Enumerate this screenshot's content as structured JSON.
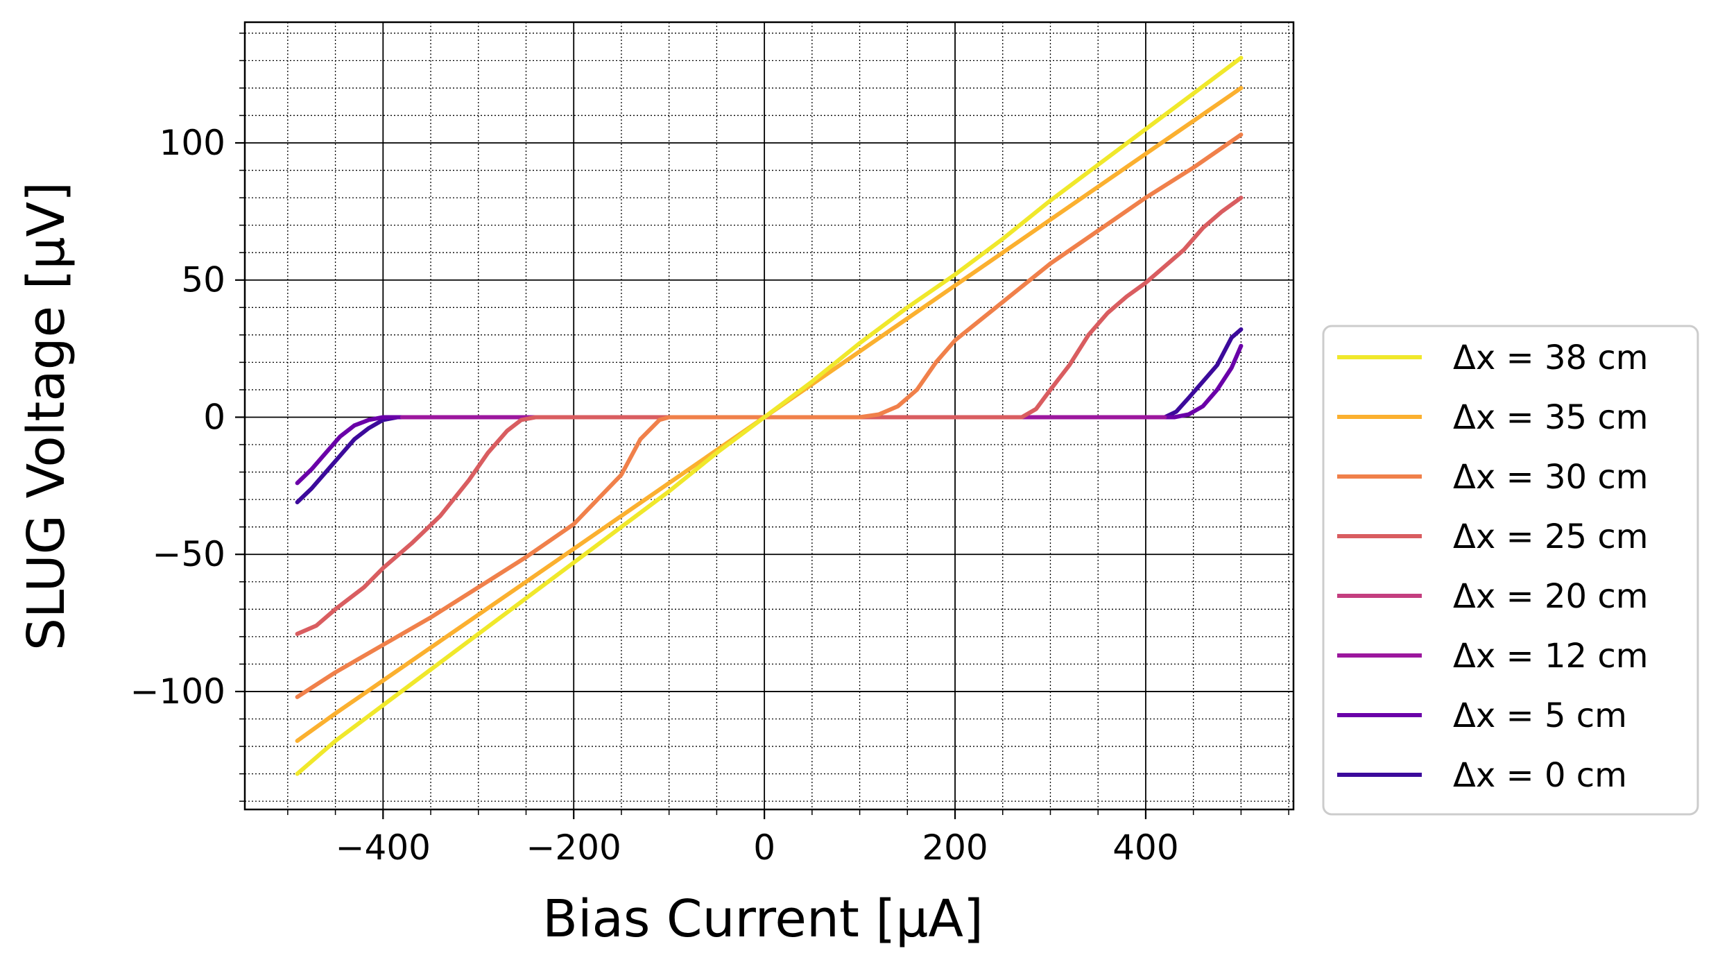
{
  "chart_data": {
    "type": "line",
    "xlabel": "Bias Current [μA]",
    "ylabel": "SLUG Voltage [μV]",
    "xlim": [
      -545,
      555
    ],
    "ylim": [
      -143,
      144
    ],
    "xticks": [
      -400,
      -200,
      0,
      200,
      400
    ],
    "yticks": [
      -100,
      -50,
      0,
      50,
      100
    ],
    "xtick_labels": [
      "−400",
      "−200",
      "0",
      "200",
      "400"
    ],
    "ytick_labels": [
      "−100",
      "−50",
      "0",
      "50",
      "100"
    ],
    "grid": "major solid, minor dotted",
    "legend_position": "outside right, lower",
    "series": [
      {
        "name": "Δx = 38 cm",
        "color": "#f0e82b",
        "points": [
          [
            -490,
            -130
          ],
          [
            -450,
            -118
          ],
          [
            -400,
            -105
          ],
          [
            -350,
            -92
          ],
          [
            -300,
            -79
          ],
          [
            -250,
            -66
          ],
          [
            -200,
            -53
          ],
          [
            -150,
            -40
          ],
          [
            -100,
            -27
          ],
          [
            -50,
            -13
          ],
          [
            0,
            0
          ],
          [
            50,
            13
          ],
          [
            100,
            27
          ],
          [
            150,
            40
          ],
          [
            200,
            52
          ],
          [
            250,
            65
          ],
          [
            300,
            79
          ],
          [
            350,
            92
          ],
          [
            400,
            105
          ],
          [
            450,
            118
          ],
          [
            500,
            131
          ]
        ]
      },
      {
        "name": "Δx = 35 cm",
        "color": "#fbb02f",
        "points": [
          [
            -490,
            -118
          ],
          [
            -450,
            -108
          ],
          [
            -400,
            -96
          ],
          [
            -350,
            -84
          ],
          [
            -300,
            -72
          ],
          [
            -250,
            -60
          ],
          [
            -200,
            -48
          ],
          [
            -150,
            -36
          ],
          [
            -100,
            -24
          ],
          [
            -50,
            -12
          ],
          [
            0,
            0
          ],
          [
            50,
            12
          ],
          [
            100,
            24
          ],
          [
            150,
            36
          ],
          [
            200,
            48
          ],
          [
            250,
            60
          ],
          [
            300,
            72
          ],
          [
            350,
            84
          ],
          [
            400,
            96
          ],
          [
            450,
            108
          ],
          [
            500,
            120
          ]
        ]
      },
      {
        "name": "Δx = 30 cm",
        "color": "#f0804a",
        "points": [
          [
            -490,
            -102
          ],
          [
            -450,
            -93
          ],
          [
            -400,
            -83
          ],
          [
            -350,
            -73
          ],
          [
            -300,
            -62
          ],
          [
            -250,
            -51
          ],
          [
            -200,
            -39
          ],
          [
            -150,
            -21
          ],
          [
            -130,
            -8
          ],
          [
            -110,
            -1
          ],
          [
            -100,
            0
          ],
          [
            100,
            0
          ],
          [
            120,
            1
          ],
          [
            140,
            4
          ],
          [
            160,
            10
          ],
          [
            180,
            20
          ],
          [
            200,
            28
          ],
          [
            250,
            42
          ],
          [
            300,
            56
          ],
          [
            350,
            68
          ],
          [
            400,
            80
          ],
          [
            450,
            91
          ],
          [
            500,
            103
          ]
        ]
      },
      {
        "name": "Δx = 25 cm",
        "color": "#d95d60",
        "points": [
          [
            -490,
            -79
          ],
          [
            -470,
            -76
          ],
          [
            -450,
            -70
          ],
          [
            -420,
            -62
          ],
          [
            -400,
            -55
          ],
          [
            -370,
            -46
          ],
          [
            -340,
            -36
          ],
          [
            -310,
            -23
          ],
          [
            -290,
            -13
          ],
          [
            -270,
            -5
          ],
          [
            -255,
            -1
          ],
          [
            -240,
            0
          ],
          [
            270,
            0
          ],
          [
            285,
            3
          ],
          [
            300,
            10
          ],
          [
            320,
            19
          ],
          [
            340,
            30
          ],
          [
            360,
            38
          ],
          [
            380,
            44
          ],
          [
            400,
            49
          ],
          [
            420,
            55
          ],
          [
            440,
            61
          ],
          [
            460,
            69
          ],
          [
            480,
            75
          ],
          [
            500,
            80
          ]
        ]
      },
      {
        "name": "Δx = 20 cm",
        "color": "#c43e7f",
        "points": [
          [
            -240,
            0
          ],
          [
            270,
            0
          ]
        ]
      },
      {
        "name": "Δx = 12 cm",
        "color": "#9c179e",
        "points": [
          [
            -380,
            0
          ],
          [
            420,
            0
          ]
        ]
      },
      {
        "name": "Δx = 5 cm",
        "color": "#6a00a8",
        "points": [
          [
            -490,
            -24
          ],
          [
            -475,
            -19
          ],
          [
            -460,
            -13
          ],
          [
            -445,
            -7
          ],
          [
            -430,
            -3
          ],
          [
            -415,
            -1
          ],
          [
            -400,
            0
          ],
          [
            430,
            0
          ],
          [
            445,
            1
          ],
          [
            460,
            4
          ],
          [
            475,
            10
          ],
          [
            490,
            18
          ],
          [
            500,
            26
          ]
        ]
      },
      {
        "name": "Δx = 0 cm",
        "color": "#3c0a9b",
        "points": [
          [
            -490,
            -31
          ],
          [
            -475,
            -26
          ],
          [
            -460,
            -20
          ],
          [
            -445,
            -14
          ],
          [
            -430,
            -8
          ],
          [
            -415,
            -4
          ],
          [
            -400,
            -1
          ],
          [
            -385,
            0
          ],
          [
            420,
            0
          ],
          [
            432,
            2
          ],
          [
            445,
            7
          ],
          [
            460,
            13
          ],
          [
            475,
            19
          ],
          [
            490,
            29
          ],
          [
            500,
            32
          ]
        ]
      }
    ]
  }
}
